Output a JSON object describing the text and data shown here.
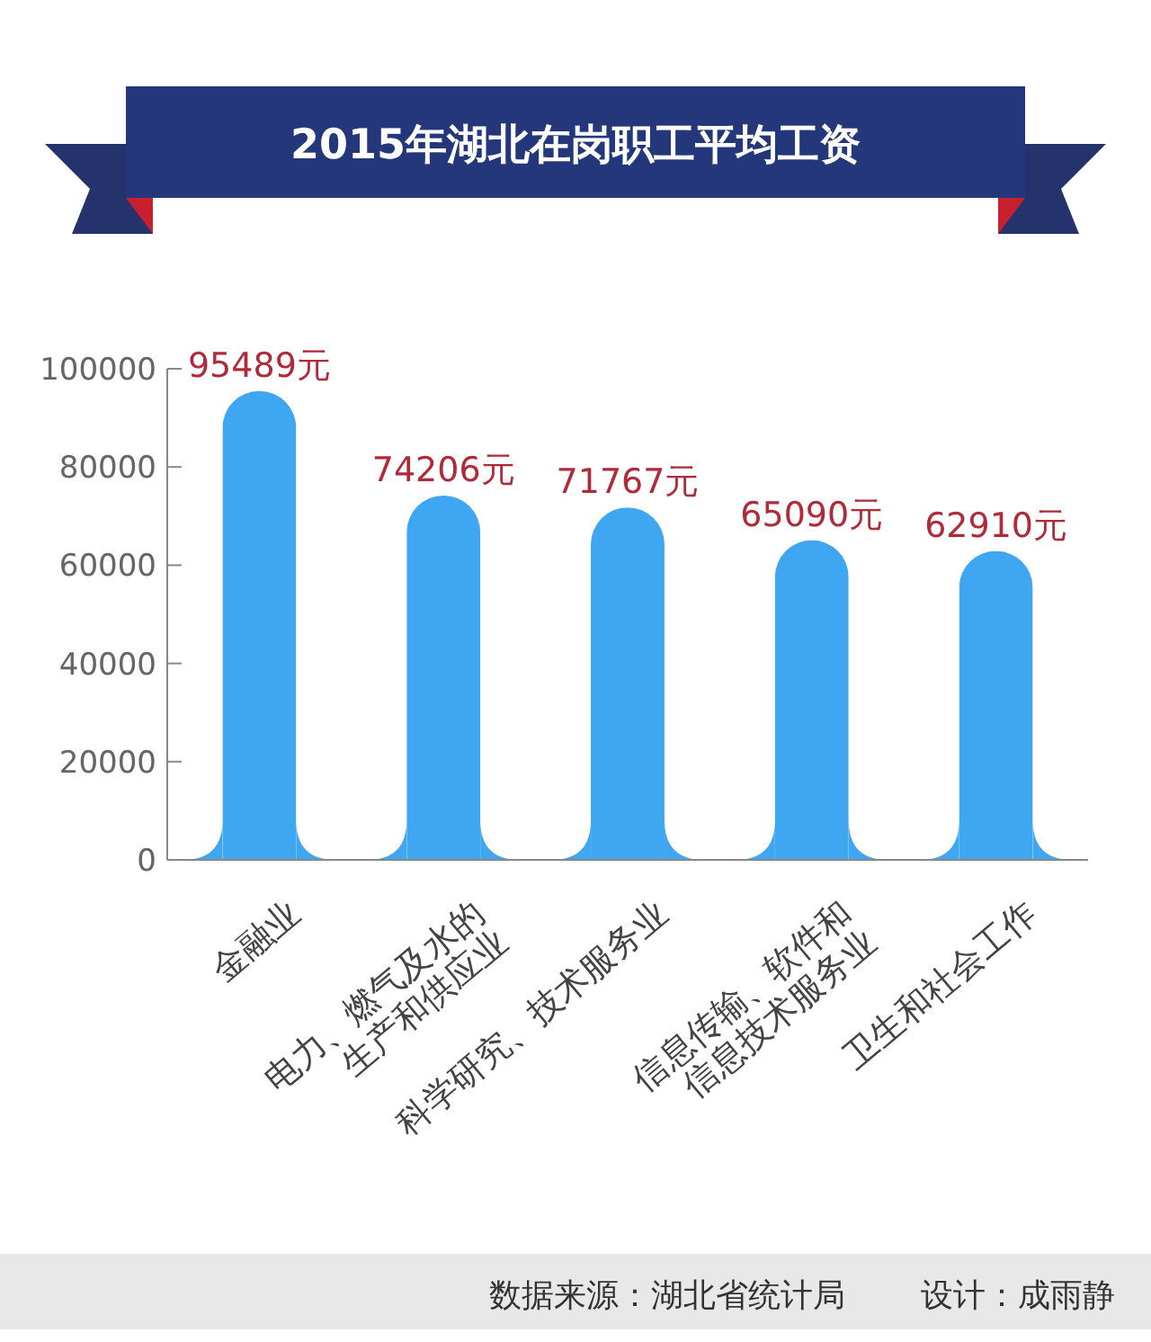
{
  "chart_data": {
    "type": "bar",
    "title": "2015年湖北在岗职工平均工资",
    "categories": [
      "金融业",
      "电力、燃气及水的\n生产和供应业",
      "科学研究、技术服务业",
      "信息传输、软件和\n信息技术服务业",
      "卫生和社会工作"
    ],
    "values": [
      95489,
      74206,
      71767,
      65090,
      62910
    ],
    "value_labels": [
      "95489元",
      "74206元",
      "71767元",
      "65090元",
      "62910元"
    ],
    "color": "#3fa6f2",
    "ylim": [
      0,
      100000
    ],
    "yticks": [
      0,
      20000,
      40000,
      60000,
      80000,
      100000
    ],
    "grid": false,
    "annotations": [
      "数据来源：湖北省统计局",
      "设计：成雨静"
    ]
  }
}
